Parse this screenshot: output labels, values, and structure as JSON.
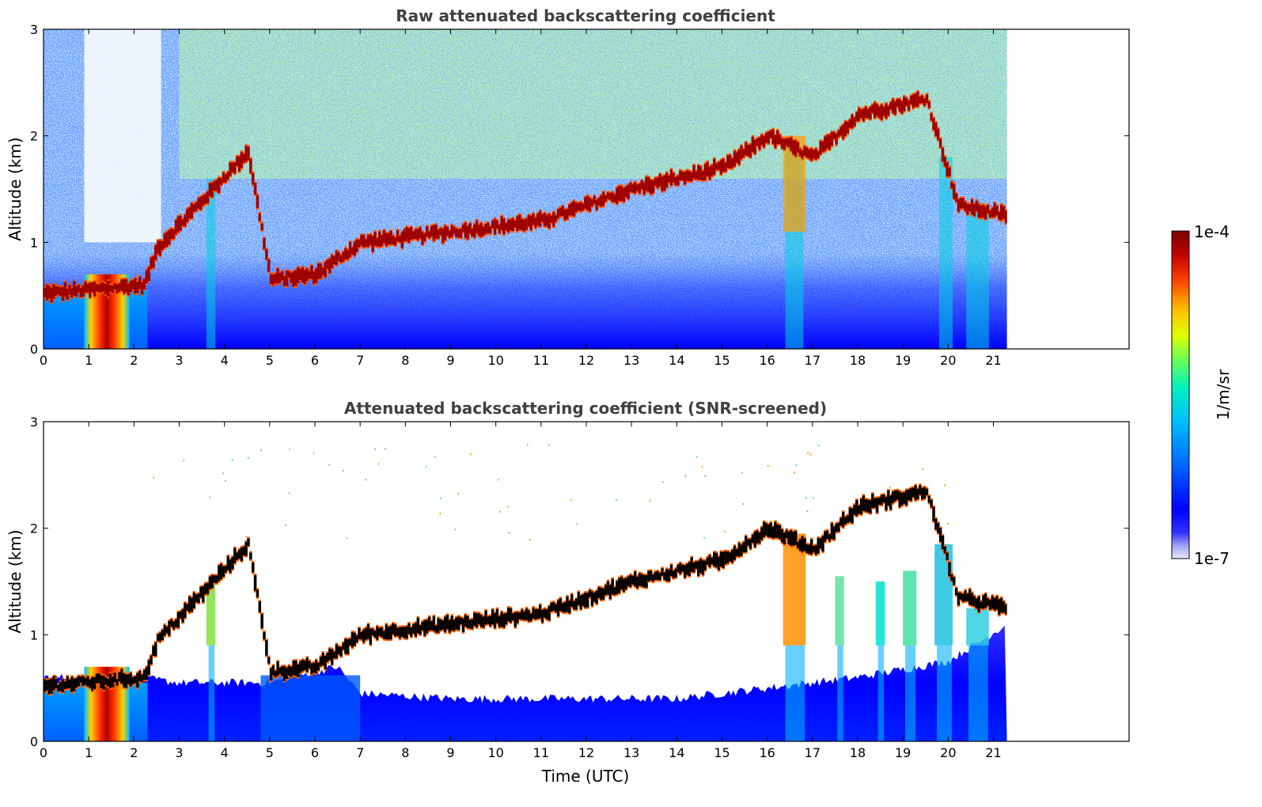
{
  "colors": {
    "background": "#ffffff",
    "title": "#404040",
    "axis": "#000000",
    "colormap": [
      "#3f00a0",
      "#0000ff",
      "#0080ff",
      "#00e0e0",
      "#40ff80",
      "#e0ff00",
      "#ffc000",
      "#ff4000",
      "#c00000",
      "#800000"
    ]
  },
  "chart_data": [
    {
      "type": "heatmap",
      "title": "Raw attenuated backscattering coefficient",
      "xlabel": "",
      "ylabel": "Altitude (km)",
      "xlim": [
        0,
        24
      ],
      "ylim": [
        0,
        3
      ],
      "data_end_x": 21.3,
      "x_ticks": [
        "0",
        "1",
        "2",
        "3",
        "4",
        "5",
        "6",
        "7",
        "8",
        "9",
        "10",
        "11",
        "12",
        "13",
        "14",
        "15",
        "16",
        "17",
        "18",
        "19",
        "20",
        "21"
      ],
      "y_ticks": [
        "0",
        "1",
        "2",
        "3"
      ],
      "features": {
        "cloud_layer_altitude_km": [
          [
            0.0,
            0.52
          ],
          [
            2.2,
            0.6
          ],
          [
            2.5,
            0.95
          ],
          [
            3.5,
            1.4
          ],
          [
            4.5,
            1.85
          ],
          [
            5.0,
            0.65
          ],
          [
            6.0,
            0.7
          ],
          [
            7.0,
            1.0
          ],
          [
            9.0,
            1.1
          ],
          [
            11.0,
            1.2
          ],
          [
            13.0,
            1.5
          ],
          [
            14.0,
            1.6
          ],
          [
            15.0,
            1.7
          ],
          [
            16.0,
            2.0
          ],
          [
            17.0,
            1.8
          ],
          [
            18.0,
            2.2
          ],
          [
            19.5,
            2.35
          ],
          [
            20.2,
            1.35
          ],
          [
            21.3,
            1.25
          ]
        ],
        "surface_plume_hours": [
          0.9,
          1.9
        ]
      }
    },
    {
      "type": "heatmap",
      "title": "Attenuated backscattering coefficient (SNR-screened)",
      "xlabel": "Time (UTC)",
      "ylabel": "Altitude (km)",
      "xlim": [
        0,
        24
      ],
      "ylim": [
        0,
        3
      ],
      "data_end_x": 21.3,
      "x_ticks": [
        "0",
        "1",
        "2",
        "3",
        "4",
        "5",
        "6",
        "7",
        "8",
        "9",
        "10",
        "11",
        "12",
        "13",
        "14",
        "15",
        "16",
        "17",
        "18",
        "19",
        "20",
        "21"
      ],
      "y_ticks": [
        "0",
        "1",
        "2",
        "3"
      ],
      "features": {
        "cloud_layer_altitude_km": [
          [
            0.0,
            0.52
          ],
          [
            2.2,
            0.6
          ],
          [
            2.5,
            0.95
          ],
          [
            3.5,
            1.4
          ],
          [
            4.5,
            1.85
          ],
          [
            5.0,
            0.65
          ],
          [
            6.0,
            0.7
          ],
          [
            7.0,
            1.0
          ],
          [
            9.0,
            1.1
          ],
          [
            11.0,
            1.2
          ],
          [
            13.0,
            1.5
          ],
          [
            14.0,
            1.6
          ],
          [
            15.0,
            1.7
          ],
          [
            16.0,
            2.0
          ],
          [
            17.0,
            1.8
          ],
          [
            18.0,
            2.2
          ],
          [
            19.5,
            2.35
          ],
          [
            20.2,
            1.35
          ],
          [
            21.3,
            1.25
          ]
        ],
        "boundary_layer_top_km": [
          [
            0.0,
            0.6
          ],
          [
            2.0,
            0.6
          ],
          [
            3.0,
            0.55
          ],
          [
            5.0,
            0.55
          ],
          [
            6.5,
            0.7
          ],
          [
            7.0,
            0.45
          ],
          [
            9.0,
            0.4
          ],
          [
            12.0,
            0.4
          ],
          [
            14.0,
            0.4
          ],
          [
            16.0,
            0.5
          ],
          [
            18.0,
            0.6
          ],
          [
            20.0,
            0.75
          ],
          [
            21.3,
            1.1
          ]
        ]
      }
    }
  ],
  "colorbar": {
    "label": "1/m/sr",
    "max_label": "1e-4",
    "min_label": "1e-7",
    "range": [
      1e-07,
      0.0001
    ],
    "scale": "log"
  }
}
